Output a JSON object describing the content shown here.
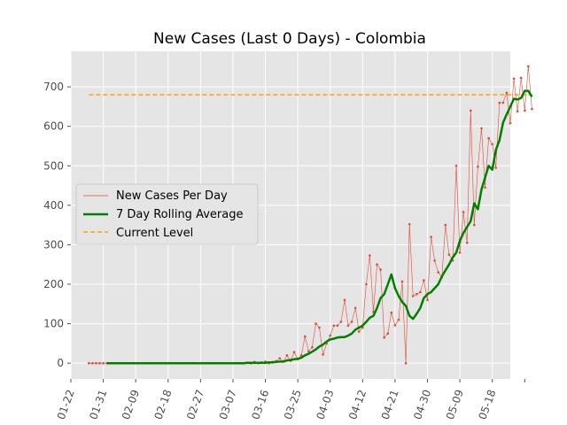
{
  "chart_data": {
    "type": "line",
    "title": "New Cases (Last 0 Days) - Colombia",
    "xlabel": "",
    "ylabel": "",
    "x_tick_labels": [
      "01-22",
      "01-31",
      "02-09",
      "02-18",
      "02-27",
      "03-07",
      "03-16",
      "03-25",
      "04-03",
      "04-12",
      "04-21",
      "04-30",
      "05-09",
      "05-18"
    ],
    "y_ticks": [
      0,
      100,
      200,
      300,
      400,
      500,
      600,
      700
    ],
    "xlim": [
      "2020-01-22",
      "2020-05-23"
    ],
    "ylim": [
      -40,
      790
    ],
    "grid": true,
    "legend_position": "center-left",
    "start_date": "2020-01-27",
    "series": [
      {
        "name": "New Cases Per Day",
        "color": "#e24a33",
        "style": "thin-line-with-point-markers",
        "values": [
          0,
          0,
          0,
          0,
          0,
          0,
          0,
          0,
          0,
          0,
          0,
          0,
          0,
          0,
          0,
          0,
          0,
          0,
          0,
          0,
          0,
          0,
          0,
          0,
          0,
          0,
          0,
          0,
          0,
          0,
          0,
          0,
          0,
          0,
          0,
          0,
          0,
          0,
          0,
          0,
          0,
          0,
          0,
          0,
          1,
          0,
          3,
          0,
          2,
          4,
          0,
          3,
          5,
          12,
          4,
          20,
          6,
          28,
          10,
          20,
          68,
          30,
          40,
          100,
          90,
          22,
          50,
          70,
          95,
          95,
          105,
          160,
          95,
          105,
          140,
          80,
          90,
          200,
          273,
          130,
          250,
          237,
          65,
          75,
          128,
          96,
          110,
          207,
          0,
          352,
          170,
          175,
          180,
          210,
          160,
          320,
          260,
          230,
          218,
          350,
          275,
          260,
          500,
          280,
          383,
          305,
          640,
          350,
          498,
          595,
          445,
          570,
          555,
          495,
          660,
          660,
          685,
          608,
          721,
          638,
          723,
          640,
          752,
          644
        ]
      },
      {
        "name": "7 Day Rolling Average",
        "color": "#008000",
        "style": "thick-line",
        "values": [
          0,
          0,
          0,
          0,
          0,
          0,
          0,
          0,
          0,
          0,
          0,
          0,
          0,
          0,
          0,
          0,
          0,
          0,
          0,
          0,
          0,
          0,
          0,
          0,
          0,
          0,
          0,
          0,
          0,
          0,
          0,
          0,
          0,
          0,
          0,
          0,
          0,
          0,
          0,
          0,
          0,
          0,
          0,
          0,
          1,
          1,
          1,
          1,
          1,
          1,
          2,
          2,
          3,
          4,
          4,
          7,
          8,
          10,
          11,
          14,
          20,
          24,
          29,
          35,
          42,
          47,
          55,
          60,
          62,
          65,
          66,
          66,
          70,
          75,
          85,
          90,
          95,
          105,
          115,
          120,
          140,
          165,
          175,
          200,
          225,
          190,
          170,
          155,
          145,
          120,
          112,
          125,
          140,
          165,
          175,
          180,
          190,
          200,
          220,
          235,
          250,
          268,
          280,
          310,
          330,
          345,
          360,
          405,
          390,
          440,
          470,
          500,
          490,
          540,
          565,
          610,
          630,
          650,
          670,
          668,
          672,
          690,
          690,
          675
        ],
        "display_start_index": 5
      },
      {
        "name": "Current Level",
        "color": "#ffa500",
        "style": "dashed",
        "value": 680
      }
    ]
  }
}
